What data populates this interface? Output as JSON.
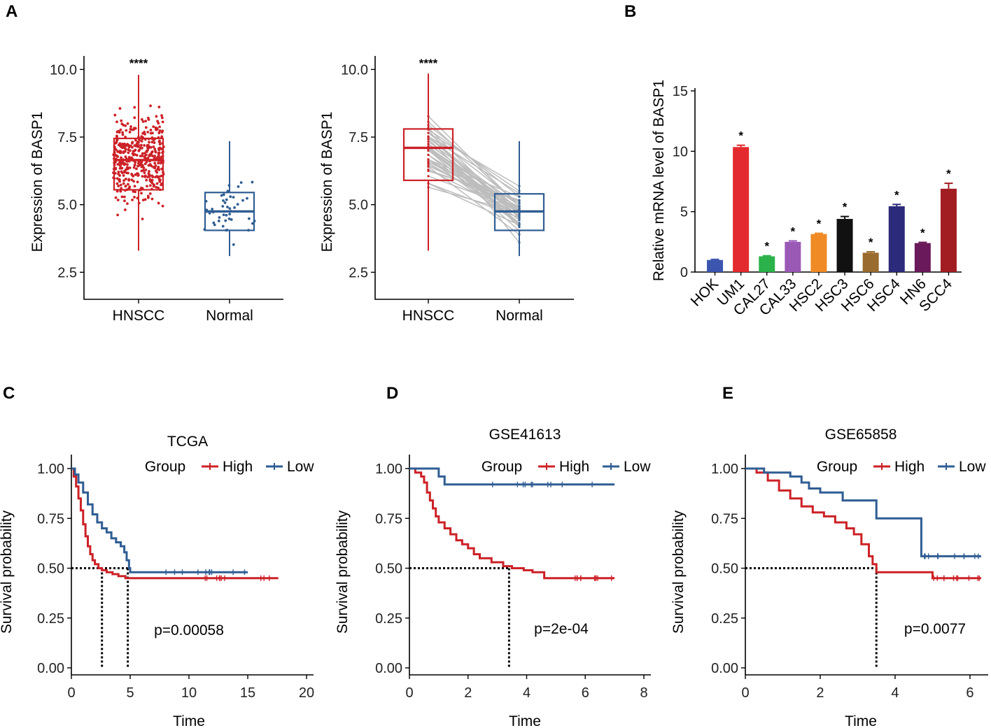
{
  "colors": {
    "high": "#cc2127",
    "low": "#2f5d93",
    "tumor": "#cc2127",
    "normal": "#2f5d93",
    "line_gray": "#bdbdbd"
  },
  "panel_labels": [
    "A",
    "B",
    "C",
    "D",
    "E"
  ],
  "chart_data": [
    {
      "id": "A1",
      "type": "box",
      "ylabel": "Expression of BASP1",
      "ylim": [
        1.5,
        10.5
      ],
      "yticks": [
        2.5,
        5.0,
        7.5,
        10.0
      ],
      "ytick_labels": [
        "2.5",
        "5.0",
        "7.5",
        "10.0"
      ],
      "categories": [
        "HNSCC",
        "Normal"
      ],
      "boxes": [
        {
          "name": "HNSCC",
          "min": 3.3,
          "q1": 5.55,
          "median": 6.65,
          "q3": 7.45,
          "max": 9.8
        },
        {
          "name": "Normal",
          "min": 3.1,
          "q1": 4.05,
          "median": 4.75,
          "q3": 5.45,
          "max": 7.35
        }
      ],
      "significance": "****"
    },
    {
      "id": "A2",
      "type": "paired-box",
      "ylabel": "Expression of BASP1",
      "ylim": [
        1.5,
        10.5
      ],
      "yticks": [
        2.5,
        5.0,
        7.5,
        10.0
      ],
      "ytick_labels": [
        "2.5",
        "5.0",
        "7.5",
        "10.0"
      ],
      "categories": [
        "HNSCC",
        "Normal"
      ],
      "boxes": [
        {
          "name": "HNSCC",
          "min": 3.3,
          "q1": 5.9,
          "median": 7.1,
          "q3": 7.8,
          "max": 9.85
        },
        {
          "name": "Normal",
          "min": 3.1,
          "q1": 4.05,
          "median": 4.75,
          "q3": 5.4,
          "max": 7.35
        }
      ],
      "significance": "****"
    },
    {
      "id": "B",
      "type": "bar",
      "ylabel": "Relative mRNA level of BASP1",
      "ylim": [
        0,
        15
      ],
      "yticks": [
        0,
        5,
        10,
        15
      ],
      "ytick_labels": [
        "0",
        "5",
        "10",
        "15"
      ],
      "categories": [
        "HOK",
        "UM1",
        "CAL27",
        "CAL33",
        "HSC2",
        "HSC3",
        "HSC6",
        "HSC4",
        "HN6",
        "SCC4"
      ],
      "values": [
        1.0,
        10.35,
        1.3,
        2.5,
        3.15,
        4.4,
        1.6,
        5.45,
        2.4,
        6.9
      ],
      "errors": [
        0.05,
        0.15,
        0.05,
        0.08,
        0.06,
        0.2,
        0.08,
        0.15,
        0.06,
        0.45
      ],
      "bar_colors": [
        "#3c56b0",
        "#e32a2e",
        "#2bb24a",
        "#9b59b6",
        "#f08a24",
        "#111111",
        "#9a6b2e",
        "#2c2a7a",
        "#6a1a5a",
        "#a11d22"
      ],
      "significance": [
        "",
        "*",
        "*",
        "*",
        "*",
        "*",
        "*",
        "*",
        "*",
        "*"
      ]
    },
    {
      "id": "C",
      "type": "line",
      "title": "TCGA",
      "xlabel": "Time",
      "ylabel": "Survival probability",
      "xlim": [
        0,
        20
      ],
      "ylim": [
        0,
        1
      ],
      "xticks": [
        0,
        5,
        10,
        15,
        20
      ],
      "xtick_labels": [
        "0",
        "5",
        "10",
        "15",
        "20"
      ],
      "yticks": [
        0,
        0.25,
        0.5,
        0.75,
        1.0
      ],
      "ytick_labels": [
        "0.00",
        "0.25",
        "0.50",
        "0.75",
        "1.00"
      ],
      "legend_title": "Group",
      "legend": [
        "High",
        "Low"
      ],
      "series": [
        {
          "name": "High",
          "x": [
            0,
            0.2,
            0.4,
            0.6,
            0.8,
            1.0,
            1.2,
            1.4,
            1.6,
            1.8,
            2.0,
            2.3,
            2.6,
            3.0,
            3.5,
            4.0,
            4.6,
            5.0,
            7.0,
            10.0,
            15.0,
            17.6
          ],
          "y": [
            1.0,
            0.96,
            0.91,
            0.85,
            0.79,
            0.72,
            0.66,
            0.61,
            0.57,
            0.54,
            0.52,
            0.5,
            0.49,
            0.48,
            0.47,
            0.46,
            0.45,
            0.45,
            0.45,
            0.45,
            0.45,
            0.45
          ]
        },
        {
          "name": "Low",
          "x": [
            0,
            0.3,
            0.6,
            1.0,
            1.4,
            1.8,
            2.2,
            2.6,
            3.0,
            3.4,
            3.8,
            4.2,
            4.5,
            4.7,
            4.9,
            5.0,
            8.0,
            12.0,
            15.0
          ],
          "y": [
            1.0,
            0.97,
            0.93,
            0.88,
            0.82,
            0.77,
            0.73,
            0.7,
            0.68,
            0.65,
            0.63,
            0.61,
            0.58,
            0.54,
            0.5,
            0.48,
            0.48,
            0.48,
            0.48
          ]
        }
      ],
      "median_x": [
        2.6,
        4.8
      ],
      "pvalue": "p=0.00058"
    },
    {
      "id": "D",
      "type": "line",
      "title": "GSE41613",
      "xlabel": "Time",
      "ylabel": "Survival probability",
      "xlim": [
        0,
        8
      ],
      "ylim": [
        0,
        1
      ],
      "xticks": [
        0,
        2,
        4,
        6,
        8
      ],
      "xtick_labels": [
        "0",
        "2",
        "4",
        "6",
        "8"
      ],
      "yticks": [
        0,
        0.25,
        0.5,
        0.75,
        1.0
      ],
      "ytick_labels": [
        "0.00",
        "0.25",
        "0.50",
        "0.75",
        "1.00"
      ],
      "legend_title": "Group",
      "legend": [
        "High",
        "Low"
      ],
      "series": [
        {
          "name": "High",
          "x": [
            0,
            0.2,
            0.4,
            0.5,
            0.6,
            0.7,
            0.8,
            0.9,
            1.0,
            1.2,
            1.4,
            1.6,
            1.8,
            2.0,
            2.2,
            2.4,
            2.8,
            3.2,
            3.5,
            3.9,
            4.2,
            4.6,
            5.0,
            6.0,
            7.0
          ],
          "y": [
            1.0,
            0.98,
            0.96,
            0.93,
            0.88,
            0.84,
            0.8,
            0.76,
            0.73,
            0.7,
            0.67,
            0.64,
            0.62,
            0.6,
            0.57,
            0.55,
            0.53,
            0.51,
            0.5,
            0.49,
            0.48,
            0.45,
            0.45,
            0.45,
            0.45
          ]
        },
        {
          "name": "Low",
          "x": [
            0,
            1.0,
            1.2,
            4.0,
            7.0
          ],
          "y": [
            1.0,
            0.96,
            0.92,
            0.92,
            0.92
          ]
        }
      ],
      "median_x": [
        3.4
      ],
      "pvalue": "p=2e-04"
    },
    {
      "id": "E",
      "type": "line",
      "title": "GSE65858",
      "xlabel": "Time",
      "ylabel": "Survival probability",
      "xlim": [
        0,
        6.3
      ],
      "ylim": [
        0,
        1
      ],
      "xticks": [
        0,
        2,
        4,
        6
      ],
      "xtick_labels": [
        "0",
        "2",
        "4",
        "6"
      ],
      "yticks": [
        0,
        0.25,
        0.5,
        0.75,
        1.0
      ],
      "ytick_labels": [
        "0.00",
        "0.25",
        "0.50",
        "0.75",
        "1.00"
      ],
      "legend_title": "Group",
      "legend": [
        "High",
        "Low"
      ],
      "series": [
        {
          "name": "High",
          "x": [
            0,
            0.3,
            0.6,
            0.9,
            1.2,
            1.5,
            1.8,
            2.1,
            2.4,
            2.7,
            2.9,
            3.1,
            3.3,
            3.4,
            3.5,
            4.0,
            4.9,
            5.0,
            6.3
          ],
          "y": [
            1.0,
            0.98,
            0.94,
            0.89,
            0.85,
            0.81,
            0.78,
            0.76,
            0.73,
            0.7,
            0.67,
            0.62,
            0.56,
            0.52,
            0.48,
            0.48,
            0.48,
            0.45,
            0.45
          ]
        },
        {
          "name": "Low",
          "x": [
            0,
            0.5,
            1.2,
            1.5,
            1.7,
            2.0,
            2.6,
            3.5,
            4.0,
            4.7,
            5.0,
            6.3
          ],
          "y": [
            1.0,
            0.98,
            0.96,
            0.93,
            0.9,
            0.88,
            0.84,
            0.75,
            0.75,
            0.56,
            0.56,
            0.56
          ]
        }
      ],
      "median_x": [
        3.5
      ],
      "pvalue": "p=0.0077"
    }
  ]
}
